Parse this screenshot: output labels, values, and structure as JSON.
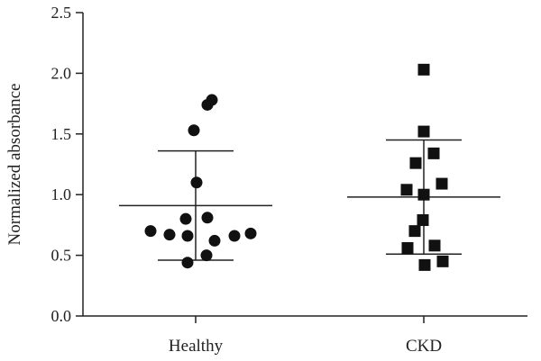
{
  "chart_data": {
    "type": "scatter",
    "title": "",
    "xlabel": "",
    "ylabel": "Normalized absorbance",
    "ylim": [
      0,
      2.5
    ],
    "yticks": [
      "0.0",
      "0.5",
      "1.0",
      "1.5",
      "2.0",
      "2.5"
    ],
    "categories": [
      "Healthy",
      "CKD"
    ],
    "grid": false,
    "legend": "none",
    "series": [
      {
        "category": "Healthy",
        "marker": "circle",
        "color": "#111111",
        "values": [
          1.78,
          1.74,
          1.53,
          1.1,
          0.81,
          0.8,
          0.7,
          0.67,
          0.66,
          0.62,
          0.66,
          0.68,
          0.5,
          0.44
        ],
        "mean": 0.91,
        "sd_upper": 1.36,
        "sd_lower": 0.46
      },
      {
        "category": "CKD",
        "marker": "square",
        "color": "#111111",
        "values": [
          2.03,
          1.52,
          1.34,
          1.26,
          1.09,
          1.04,
          1.0,
          0.79,
          0.7,
          0.58,
          0.56,
          0.45,
          0.42
        ],
        "mean": 0.98,
        "sd_upper": 1.45,
        "sd_lower": 0.51
      }
    ]
  }
}
